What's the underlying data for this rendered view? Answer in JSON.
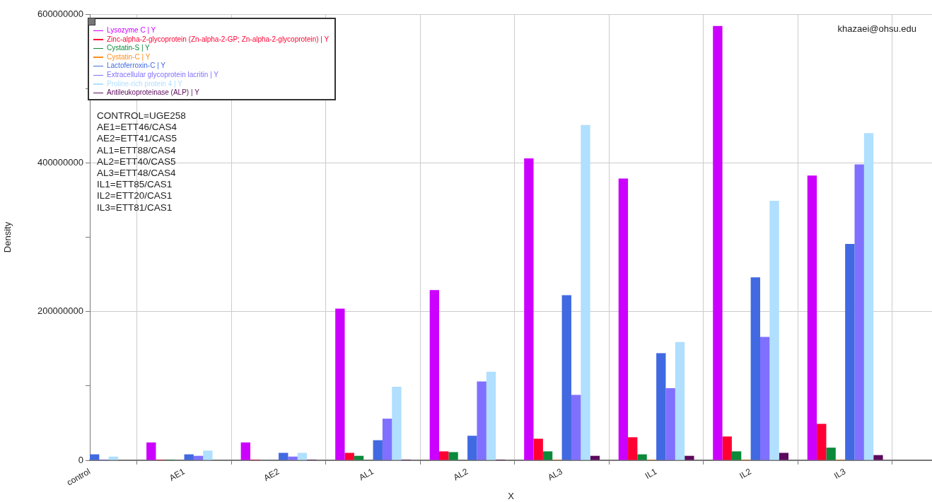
{
  "chart_data": {
    "type": "bar",
    "xlabel": "X",
    "ylabel": "Density",
    "categories": [
      "control",
      "AE1",
      "AE2",
      "AL1",
      "AL2",
      "AL3",
      "IL1",
      "IL2",
      "IL3"
    ],
    "series": [
      {
        "name": "Lysozyme C | Y",
        "color": "#cc00ff",
        "values": [
          null,
          24000000,
          24000000,
          204000000,
          229000000,
          406000000,
          379000000,
          584000000,
          383000000
        ]
      },
      {
        "name": "Zinc-alpha-2-glycoprotein (Zn-alpha-2-GP; Zn-alpha-2-glycoprotein) | Y",
        "color": "#ff0033",
        "values": [
          null,
          1000000,
          1000000,
          10000000,
          12000000,
          29000000,
          31000000,
          32000000,
          49000000
        ]
      },
      {
        "name": "Cystatin-S | Y",
        "color": "#0b8a3a",
        "values": [
          null,
          1000000,
          0,
          6000000,
          11000000,
          12000000,
          8000000,
          12000000,
          17000000
        ]
      },
      {
        "name": "Cystatin-C | Y",
        "color": "#ff8c1a",
        "values": [
          null,
          0,
          0,
          0,
          0,
          1000000,
          1000000,
          1000000,
          1000000
        ]
      },
      {
        "name": "Lactoferroxin-C | Y",
        "color": "#4169e1",
        "values": [
          8000000,
          8000000,
          10000000,
          27000000,
          33000000,
          222000000,
          144000000,
          246000000,
          291000000
        ]
      },
      {
        "name": "Extracellular glycoprotein lacritin | Y",
        "color": "#8070ff",
        "values": [
          1000000,
          6000000,
          5000000,
          56000000,
          106000000,
          88000000,
          97000000,
          166000000,
          398000000
        ]
      },
      {
        "name": "Proline-rich protein 4 | Y",
        "color": "#b0dfff",
        "values": [
          5000000,
          13000000,
          10000000,
          99000000,
          119000000,
          451000000,
          159000000,
          349000000,
          440000000
        ]
      },
      {
        "name": "Antileukoproteinase (ALP) | Y",
        "color": "#5c0a5c",
        "values": [
          0,
          0,
          1000000,
          1000000,
          1000000,
          6000000,
          6000000,
          10000000,
          7000000
        ]
      }
    ],
    "ylim": [
      0,
      600000000
    ],
    "yticks": [
      0,
      {
        "value": 100000000,
        "label": null
      },
      200000000,
      {
        "value": 300000000,
        "label": null
      },
      400000000,
      {
        "value": 500000000,
        "label": null
      },
      600000000
    ],
    "grid": true,
    "legend": "top left",
    "annotations": [
      "CONTROL=UGE258",
      "AE1=ETT46/CAS4",
      "AE2=ETT41/CAS5",
      "AL1=ETT88/CAS4",
      "AL2=ETT40/CAS5",
      "AL3=ETT48/CAS4",
      "IL1=ETT85/CAS1",
      "IL2=ETT20/CAS1",
      "IL3=ETT81/CAS1",
      "khazaei@ohsu.edu"
    ]
  }
}
